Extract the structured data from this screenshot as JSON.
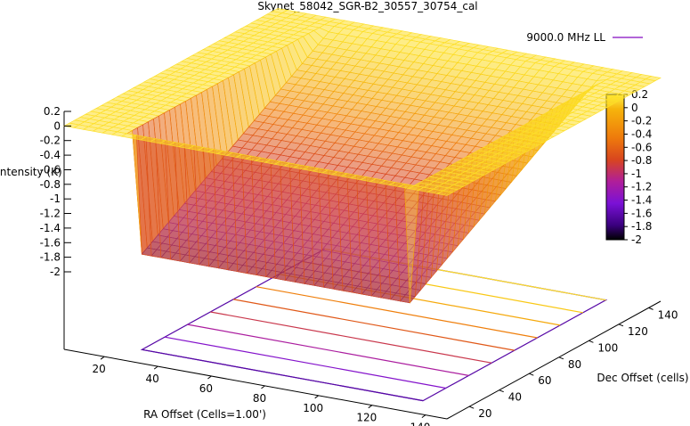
{
  "chart_data": {
    "type": "surface3d",
    "title": "Skynet_58042_SGR-B2_30557_30754_cal",
    "xlabel": "RA Offset (Cells=1.00')",
    "ylabel": "Dec Offset (cells)",
    "zlabel": "Intensity (K)",
    "legend": {
      "label": "9000.0 MHz LL",
      "color": "#9933cc",
      "position": "top-right"
    },
    "x_ticks": [
      "20",
      "40",
      "60",
      "80",
      "100",
      "120",
      "140"
    ],
    "y_ticks": [
      "20",
      "40",
      "60",
      "80",
      "100",
      "120",
      "140"
    ],
    "z_ticks": [
      "0.2",
      "0",
      "-0.2",
      "-0.4",
      "-0.6",
      "-0.8",
      "-1",
      "-1.2",
      "-1.4",
      "-1.6",
      "-1.8",
      "-2"
    ],
    "colorbar_ticks": [
      "0.2",
      "0",
      "-0.2",
      "-0.4",
      "-0.6",
      "-0.8",
      "-1",
      "-1.2",
      "-1.4",
      "-1.6",
      "-1.8",
      "-2"
    ],
    "xlim": [
      5,
      148
    ],
    "ylim": [
      5,
      148
    ],
    "zlim": [
      -2,
      0.2
    ],
    "surface": {
      "plateau_value": 0,
      "well_min_value": -1.7,
      "well_x_range": [
        27,
        132
      ],
      "well_y_range": [
        10,
        140
      ]
    },
    "contour_levels": [
      -1.6,
      -1.4,
      -1.2,
      -1.0,
      -0.8,
      -0.6,
      -0.4,
      -0.2,
      0.0
    ],
    "palette": [
      "#000000",
      "#3a007e",
      "#7a11d6",
      "#b01e9a",
      "#d8451f",
      "#ee7a0c",
      "#f6b40c",
      "#fcd91a",
      "#fff04a"
    ]
  }
}
